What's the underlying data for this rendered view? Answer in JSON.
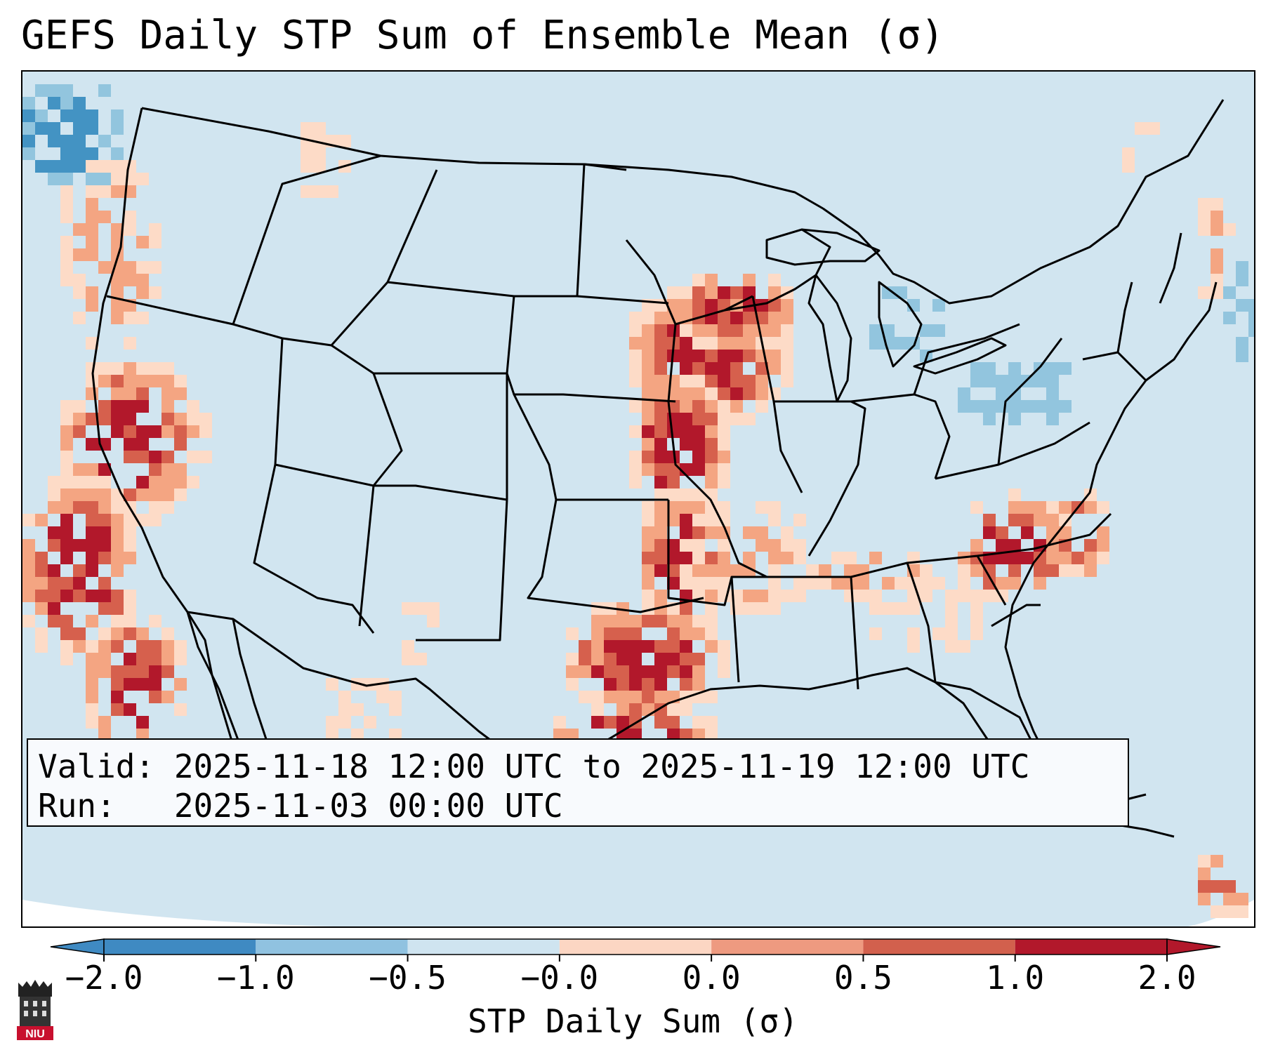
{
  "title": "GEFS Daily STP Sum of Ensemble Mean (σ)",
  "info": {
    "valid": "Valid: 2025-11-18 12:00 UTC to 2025-11-19 12:00 UTC",
    "run": "Run:   2025-11-03 00:00 UTC"
  },
  "colorbar": {
    "label": "STP Daily Sum (σ)",
    "ticks": [
      "−2.0",
      "−1.0",
      "−0.5",
      "−0.0",
      "0.0",
      "0.5",
      "1.0",
      "2.0"
    ],
    "colors": [
      "#3f8ac2",
      "#90c2e0",
      "#cfe4f0",
      "#f9f9f9",
      "#fcd6c3",
      "#ee9a80",
      "#d2604d",
      "#b2182b"
    ]
  },
  "logo": {
    "text": "NIU"
  },
  "map_colors": {
    "background": "#d1e5f0",
    "positive_light": "#fddbc7",
    "positive_mid": "#f4a582",
    "positive_strong": "#d6604d",
    "positive_max": "#b2182b",
    "negative_light": "#92c5de",
    "negative_mid": "#4393c3"
  }
}
